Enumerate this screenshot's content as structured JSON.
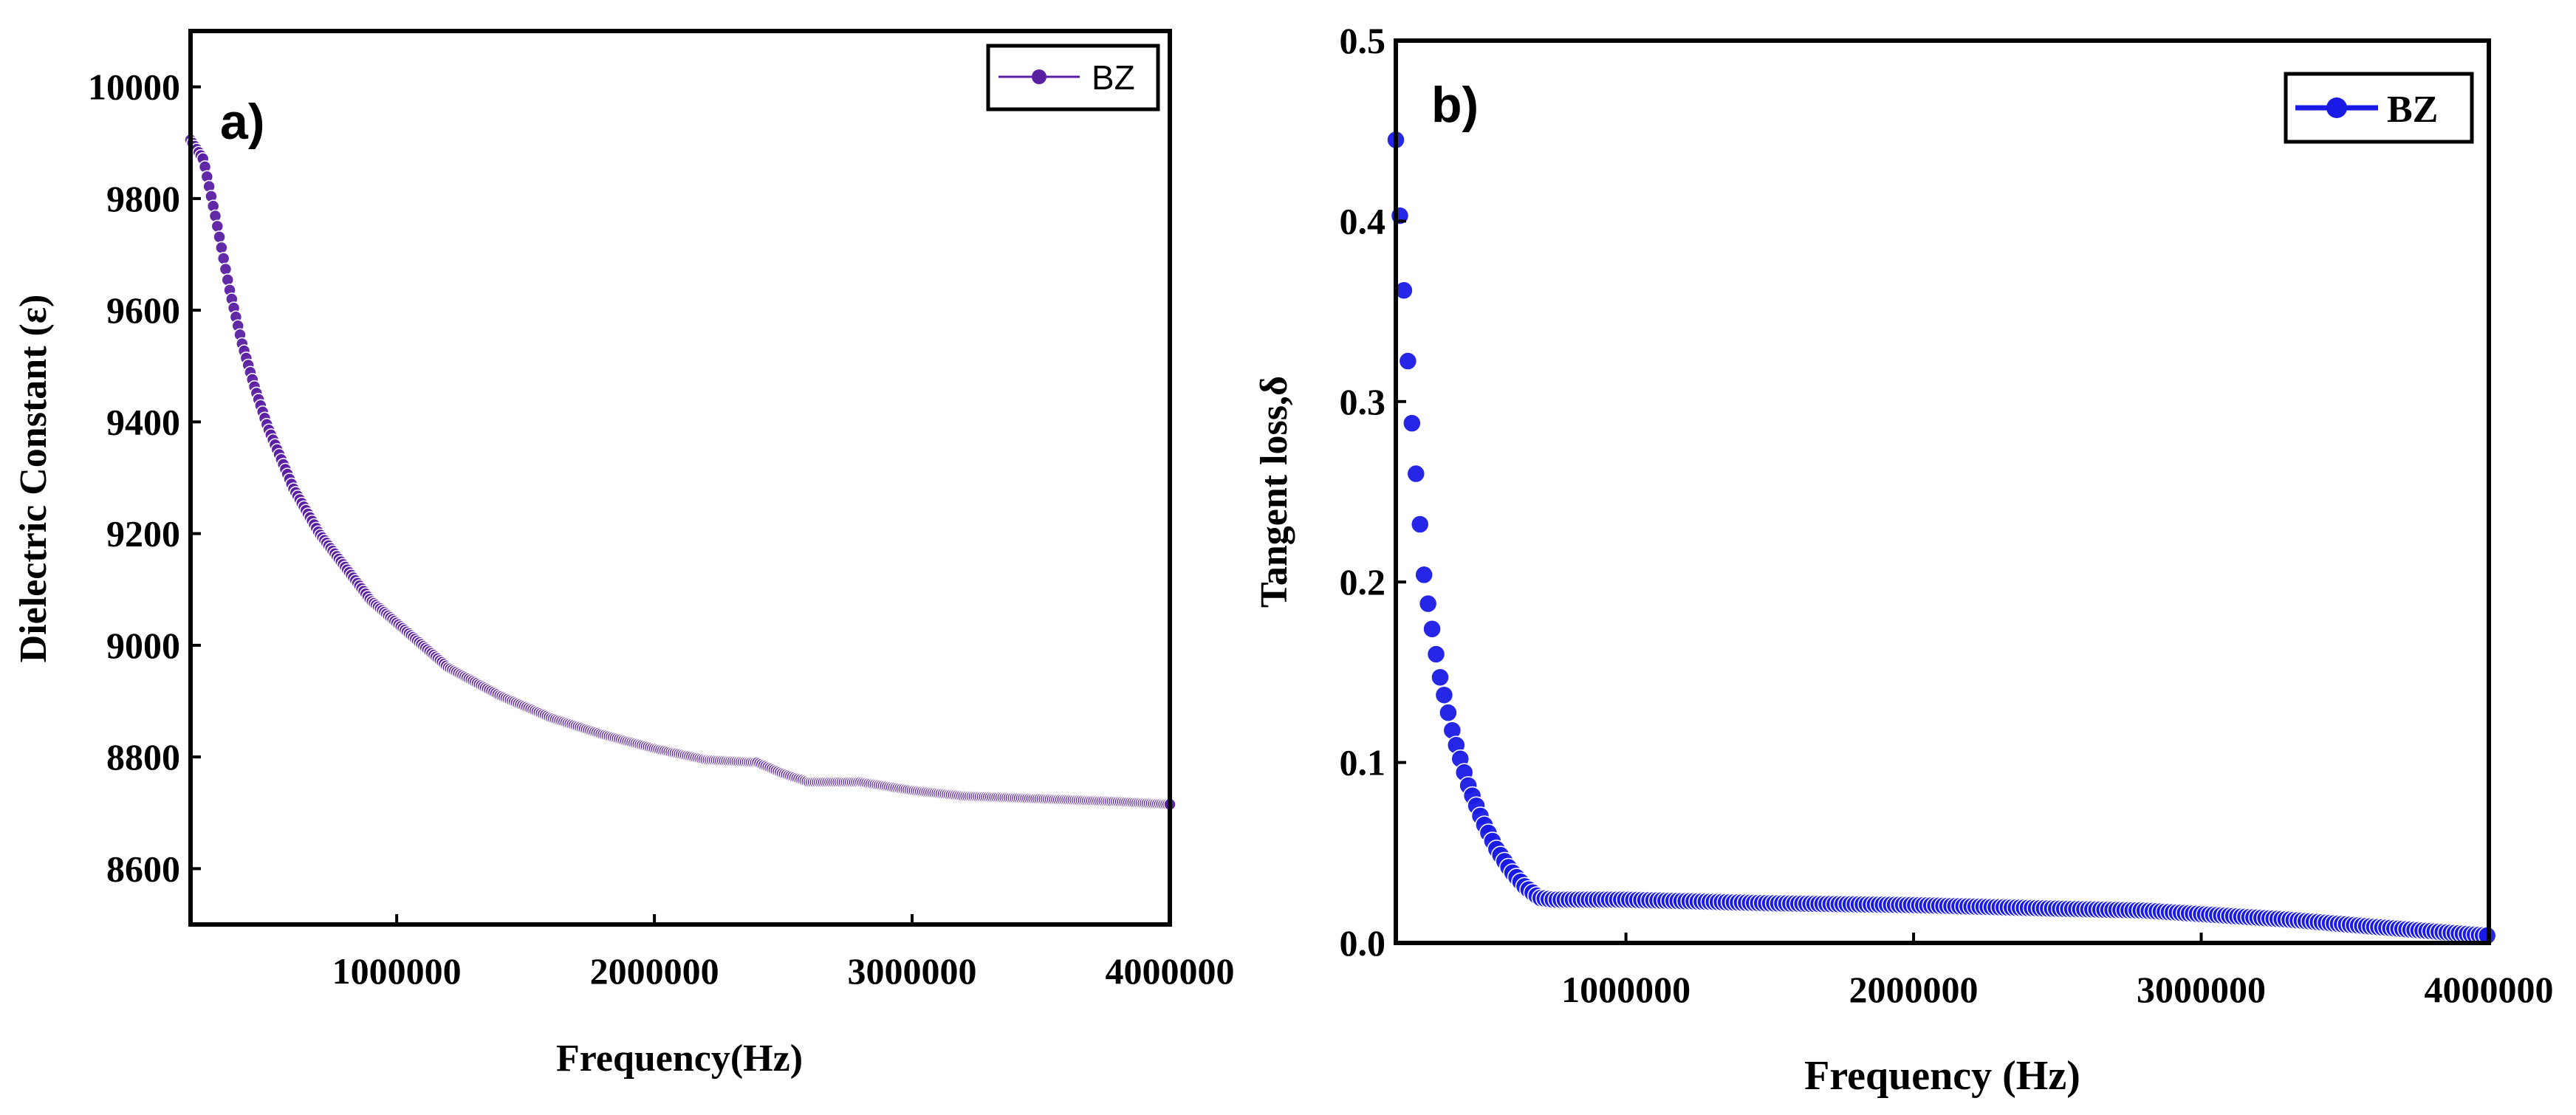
{
  "colors": {
    "panel_a_series": "#5b1fa3",
    "panel_b_series": "#1a1ae6"
  },
  "chart_data": [
    {
      "type": "scatter",
      "panel_label": "a)",
      "title": "",
      "xlabel": "Frequency(Hz)",
      "ylabel": "Dielectric Constant (ε)",
      "xlim": [
        200000,
        4000000
      ],
      "ylim": [
        8500,
        10100
      ],
      "x_ticks": [
        1000000,
        2000000,
        3000000,
        4000000
      ],
      "x_tick_labels": [
        "1000000",
        "2000000",
        "3000000",
        "4000000"
      ],
      "y_ticks": [
        8600,
        8800,
        9000,
        9200,
        9400,
        9600,
        9800,
        10000
      ],
      "y_tick_labels": [
        "8600",
        "8800",
        "9000",
        "9200",
        "9400",
        "9600",
        "9800",
        "10000"
      ],
      "legend": {
        "label": "BZ",
        "position": "top-right"
      },
      "series": [
        {
          "name": "BZ",
          "x": [
            200000,
            250000,
            300000,
            350000,
            400000,
            450000,
            500000,
            600000,
            700000,
            800000,
            900000,
            1000000,
            1200000,
            1400000,
            1600000,
            1800000,
            2000000,
            2200000,
            2400000,
            2500000,
            2600000,
            2800000,
            3000000,
            3200000,
            3500000,
            3800000,
            4000000
          ],
          "values": [
            9905,
            9870,
            9760,
            9640,
            9540,
            9460,
            9390,
            9280,
            9200,
            9140,
            9080,
            9040,
            8960,
            8910,
            8870,
            8840,
            8815,
            8795,
            8790,
            8770,
            8755,
            8755,
            8740,
            8730,
            8725,
            8720,
            8715
          ]
        }
      ]
    },
    {
      "type": "scatter",
      "panel_label": "b)",
      "title": "",
      "xlabel": "Frequency (Hz)",
      "ylabel": "Tangent loss,δ",
      "xlim": [
        200000,
        4000000
      ],
      "ylim": [
        0,
        0.5
      ],
      "x_ticks": [
        1000000,
        2000000,
        3000000,
        4000000
      ],
      "x_tick_labels": [
        "1000000",
        "2000000",
        "3000000",
        "4000000"
      ],
      "y_ticks": [
        0.0,
        0.1,
        0.2,
        0.3,
        0.4,
        0.5
      ],
      "y_tick_labels": [
        "0.0",
        "0.1",
        "0.2",
        "0.3",
        "0.4",
        "0.5"
      ],
      "legend": {
        "label": "BZ",
        "position": "top-right"
      },
      "series": [
        {
          "name": "BZ",
          "x": [
            200000,
            225000,
            250000,
            275000,
            300000,
            350000,
            400000,
            450000,
            500000,
            550000,
            600000,
            650000,
            700000,
            750000,
            1000000,
            1500000,
            2000000,
            2500000,
            2800000,
            3000000,
            3300000,
            3600000,
            4000000
          ],
          "values": [
            0.445,
            0.37,
            0.3,
            0.25,
            0.2,
            0.15,
            0.115,
            0.088,
            0.068,
            0.052,
            0.04,
            0.031,
            0.025,
            0.024,
            0.024,
            0.022,
            0.021,
            0.019,
            0.018,
            0.016,
            0.013,
            0.009,
            0.004
          ]
        }
      ]
    }
  ]
}
